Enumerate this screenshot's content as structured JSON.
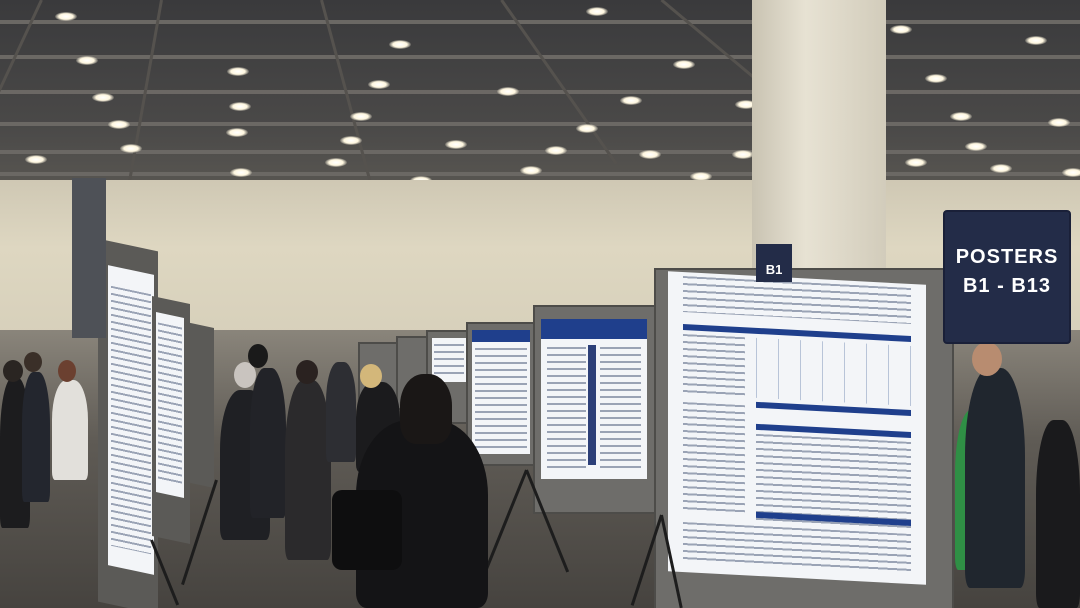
{
  "scene": {
    "description_colors": {
      "sign_background": "#232c48",
      "poster_header_blue": "#1f3f8c"
    },
    "signs": {
      "main_sign_line1": "POSTERS",
      "main_sign_line2": "B1 - B13",
      "small_sign_label": "B1"
    }
  }
}
